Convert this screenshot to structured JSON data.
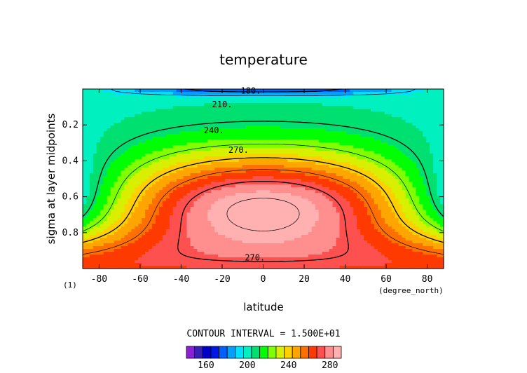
{
  "chart_data": {
    "type": "heatmap",
    "title": "temperature",
    "xlabel": "latitude",
    "ylabel": "sigma at layer midpoints",
    "x_unit": "(degree_north)",
    "y_corner_label": "(1)",
    "xlim": [
      -88,
      88
    ],
    "ylim": [
      0,
      1
    ],
    "y_inverted": true,
    "x_ticks": [
      -80,
      -60,
      -40,
      -20,
      0,
      20,
      40,
      60,
      80
    ],
    "x_tick_labels": [
      "-80",
      "-60",
      "-40",
      "-20",
      "0",
      "20",
      "40",
      "60",
      "80"
    ],
    "y_ticks": [
      0.2,
      0.4,
      0.6,
      0.8
    ],
    "y_tick_labels": [
      "0.2",
      "0.4",
      "0.6",
      "0.8"
    ],
    "contour_interval_text": "CONTOUR INTERVAL = 1.500E+01",
    "contour_levels": [
      180,
      210,
      240,
      270
    ],
    "contour_labels": [
      "180.",
      "210.",
      "240.",
      "270.",
      "270."
    ],
    "colorbar_ticks": [
      "160",
      "200",
      "240",
      "280"
    ],
    "colorbar_range": [
      145,
      295
    ],
    "colorbar_step": 7.5,
    "field_description": "max ~290 near equator at sigma 0.65, ~265 at surface poles, ~205 near sigma 0.07 poles, ~170 at top equator",
    "colors": [
      "#8b1fd6",
      "#3a1fb5",
      "#0000c8",
      "#0018e6",
      "#0060ff",
      "#00a0ff",
      "#00e0ff",
      "#00f0c0",
      "#00e070",
      "#00ff00",
      "#80ff00",
      "#d8f000",
      "#ffd000",
      "#ffa500",
      "#ff7000",
      "#ff3a00",
      "#ff5050",
      "#ff8f8f",
      "#ffb0b0"
    ]
  }
}
